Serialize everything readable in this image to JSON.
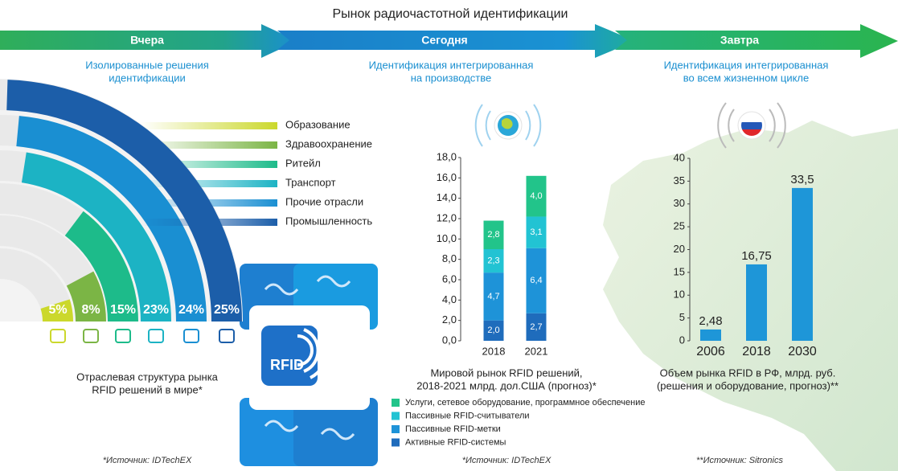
{
  "title": "Рынок радиочастотной идентификации",
  "stages": [
    {
      "label": "Вчера",
      "caption": [
        "Изолированные решения",
        "идентификации"
      ]
    },
    {
      "label": "Сегодня",
      "caption": [
        "Идентификация интегрированная",
        "на производстве"
      ]
    },
    {
      "label": "Завтра",
      "caption": [
        "Идентификация интегрированная",
        "во всем жизненном цикле"
      ]
    }
  ],
  "rfid_badge": "RFID",
  "chart_data": [
    {
      "type": "radial-bar",
      "categories": [
        "Образование",
        "Здравоохранение",
        "Ритейл",
        "Транспорт",
        "Прочие отрасли",
        "Промышленность"
      ],
      "values": [
        5,
        8,
        15,
        23,
        24,
        25
      ],
      "value_labels": [
        "5%",
        "8%",
        "15%",
        "23%",
        "24%",
        "25%"
      ],
      "colors": [
        "#cbd82c",
        "#7bb545",
        "#1dbb8a",
        "#1cb3c4",
        "#1a8fd2",
        "#1c5ea9"
      ],
      "caption": [
        "Отраслевая структура рынка",
        "RFID решений в мире*"
      ],
      "source": "*Источник: IDTechEX"
    },
    {
      "type": "stacked-bar",
      "categories": [
        "2018",
        "2021"
      ],
      "series": [
        {
          "name": "Активные RFID-системы",
          "color": "#1f6cbc",
          "values": [
            2.0,
            2.7
          ],
          "value_labels": [
            "2,0",
            "2,7"
          ]
        },
        {
          "name": "Пассивные RFID-метки",
          "color": "#1e93d8",
          "values": [
            4.7,
            6.4
          ],
          "value_labels": [
            "4,7",
            "6,4"
          ]
        },
        {
          "name": "Пассивные RFID-считыватели",
          "color": "#22c3d3",
          "values": [
            2.3,
            3.1
          ],
          "value_labels": [
            "2,3",
            "3,1"
          ]
        },
        {
          "name": "Услуги, сетевое оборудование, программное обеспечение",
          "color": "#22c48a",
          "values": [
            2.8,
            4.0
          ],
          "value_labels": [
            "2,8",
            "4,0"
          ]
        }
      ],
      "ylim": [
        0,
        18
      ],
      "yticks": [
        {
          "value": 0,
          "label": "0,0"
        },
        {
          "value": 2,
          "label": "2,0"
        },
        {
          "value": 4,
          "label": "4,0"
        },
        {
          "value": 6,
          "label": "6,0"
        },
        {
          "value": 8,
          "label": "8,0"
        },
        {
          "value": 10,
          "label": "10,0"
        },
        {
          "value": 12,
          "label": "12,0"
        },
        {
          "value": 14,
          "label": "14,0"
        },
        {
          "value": 16,
          "label": "16,0"
        },
        {
          "value": 18,
          "label": "18,0"
        }
      ],
      "grid": false,
      "caption": [
        "Мировой рынок RFID решений,",
        "2018-2021 млрд. дол.США (прогноз)*"
      ],
      "source": "*Источник: IDTechEX"
    },
    {
      "type": "bar",
      "categories": [
        "2006",
        "2018",
        "2030"
      ],
      "values": [
        2.48,
        16.75,
        33.5
      ],
      "value_labels": [
        "2,48",
        "16,75",
        "33,5"
      ],
      "color": "#1e96d8",
      "ylim": [
        0,
        40
      ],
      "yticks": [
        0,
        5,
        10,
        15,
        20,
        25,
        30,
        35,
        40
      ],
      "grid": false,
      "caption": [
        "Объем рынка RFID в РФ, млрд. руб.",
        "(решения и оборудование, прогноз)**"
      ],
      "source": "**Источник: Sitronics"
    }
  ]
}
